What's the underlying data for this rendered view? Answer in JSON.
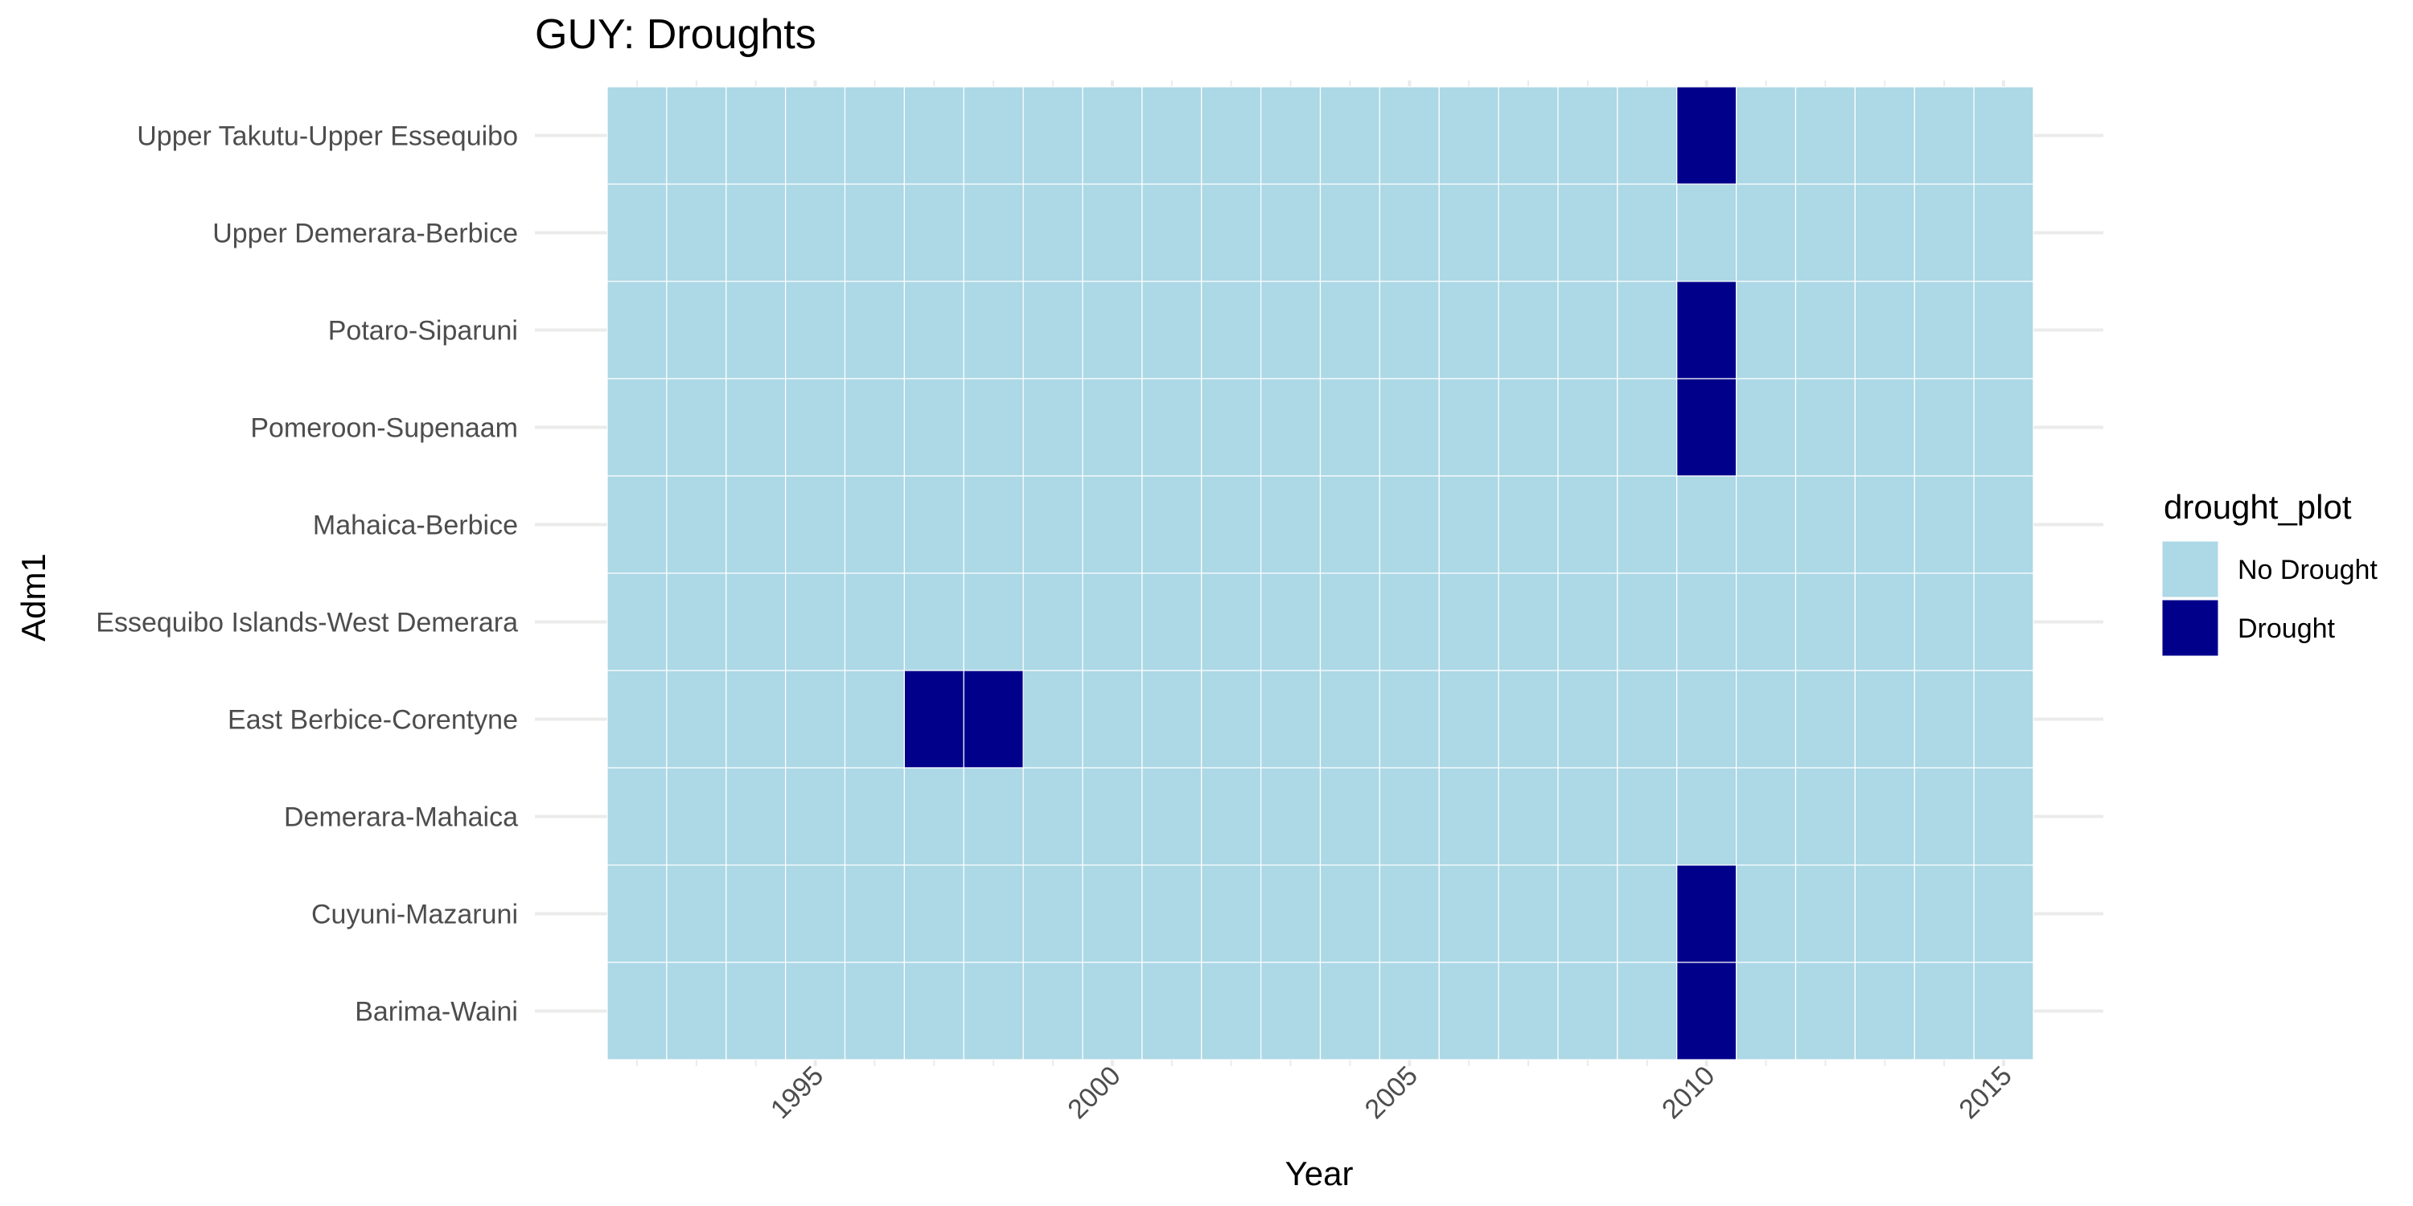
{
  "chart_data": {
    "type": "heatmap",
    "title": "GUY: Droughts",
    "xlabel": "Year",
    "ylabel": "Adm1",
    "x_ticks": [
      1995,
      2000,
      2005,
      2010,
      2015
    ],
    "x_range": [
      1992,
      2015
    ],
    "rows": [
      "Upper Takutu-Upper Essequibo",
      "Upper Demerara-Berbice",
      "Potaro-Siparuni",
      "Pomeroon-Supenaam",
      "Mahaica-Berbice",
      "Essequibo Islands-West Demerara",
      "East Berbice-Corentyne",
      "Demerara-Mahaica",
      "Cuyuni-Mazaruni",
      "Barima-Waini"
    ],
    "drought_years": {
      "Upper Takutu-Upper Essequibo": [
        2010
      ],
      "Upper Demerara-Berbice": [],
      "Potaro-Siparuni": [
        2010
      ],
      "Pomeroon-Supenaam": [
        2010
      ],
      "Mahaica-Berbice": [],
      "Essequibo Islands-West Demerara": [],
      "East Berbice-Corentyne": [
        1997,
        1998
      ],
      "Demerara-Mahaica": [],
      "Cuyuni-Mazaruni": [
        2010
      ],
      "Barima-Waini": [
        2010
      ]
    },
    "legend": {
      "title": "drought_plot",
      "placement": "right",
      "items": [
        {
          "label": "No Drought",
          "color": "#add8e6"
        },
        {
          "label": "Drought",
          "color": "#00008b"
        }
      ]
    },
    "colors": {
      "no_drought": "#add8e6",
      "drought": "#00008b",
      "grid": "#ebebeb"
    }
  }
}
